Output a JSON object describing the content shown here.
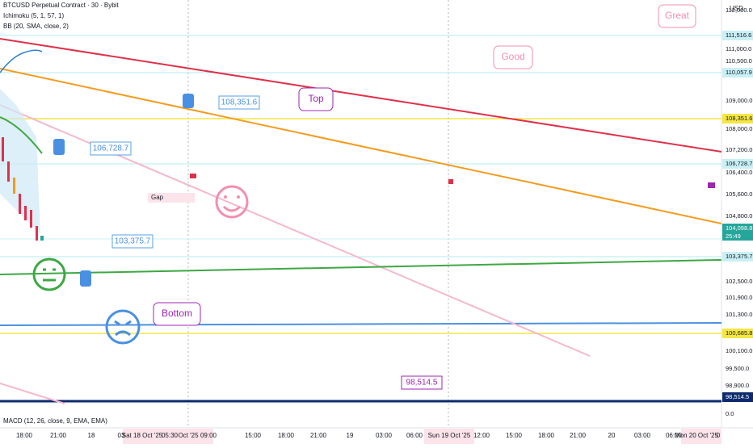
{
  "header": {
    "symbol": "BTCUSD Perpetual Contract · 30 · Bybit",
    "indicators": [
      "Ichimoku (5, 1, 57, 1)",
      "BB (20, SMA, close, 2)"
    ]
  },
  "price_axis": {
    "unit": "USD",
    "labels": [
      "112,000.0",
      "111,516.6",
      "111,000.0",
      "110,500.0",
      "110,057.9",
      "109,000.0",
      "108,351.6",
      "108,000.0",
      "107,200.0",
      "106,728.7",
      "106,400.0",
      "105,600.0",
      "104,800.0",
      "104,098.8",
      "103,375.7",
      "102,500.0",
      "101,900.0",
      "101,300.0",
      "100,685.8",
      "100,100.0",
      "99,500.0",
      "98,900.0",
      "98,514.5",
      "0.0"
    ],
    "countdown": "25:49"
  },
  "time_axis": {
    "labels": [
      "18:00",
      "21:00",
      "18",
      "03",
      "Sat 18 Oct '25",
      "05:30",
      "Oct '25",
      "09:00",
      "15:00",
      "18:00",
      "21:00",
      "19",
      "03:00",
      "06:00",
      "Sun 19 Oct '25",
      "12:00",
      "15:00",
      "18:00",
      "21:00",
      "20",
      "03:00",
      "06:00",
      "Mon 20 Oct '25",
      "0"
    ]
  },
  "annotations": {
    "great": "Great",
    "good": "Good",
    "top": "Top",
    "bottom": "Bottom",
    "gap": "Gap",
    "callouts": [
      "108,351.6",
      "106,728.7",
      "103,375.7",
      "98,514.5"
    ]
  },
  "macd": "MACD (12, 26, close, 9, EMA, EMA)"
}
